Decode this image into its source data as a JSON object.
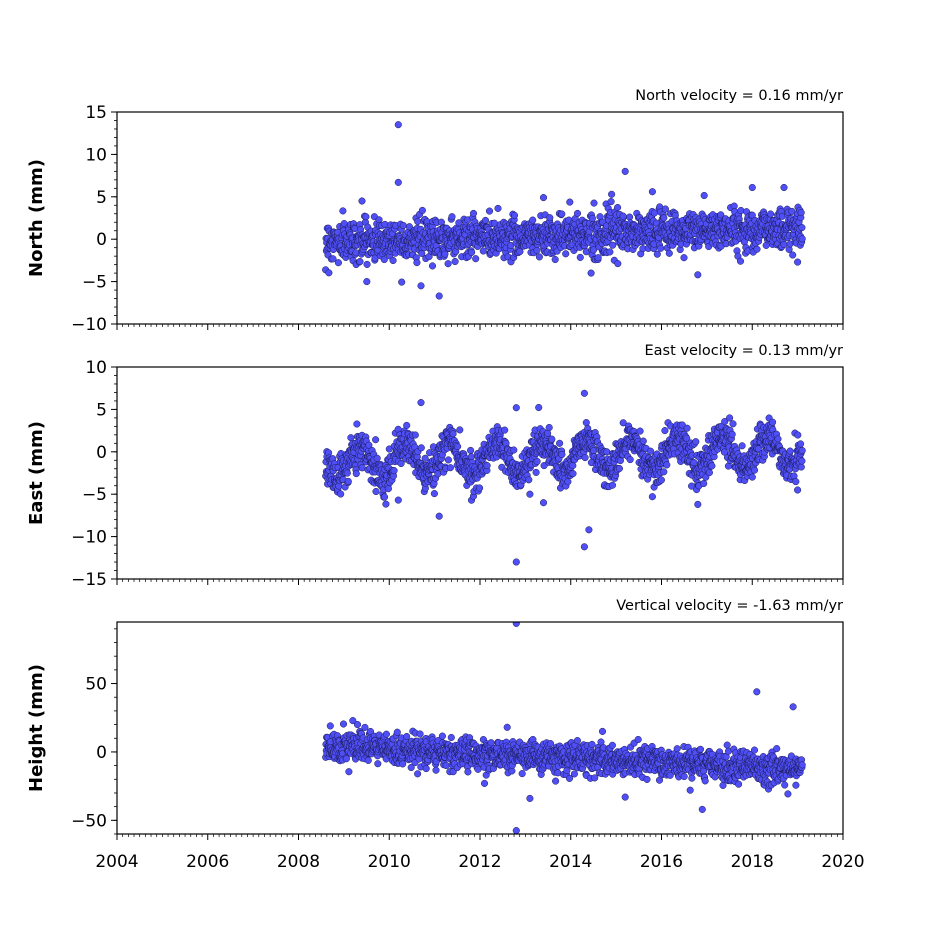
{
  "figure": {
    "xlim": [
      2004,
      2020
    ],
    "x_ticks": [
      2004,
      2006,
      2008,
      2010,
      2012,
      2014,
      2016,
      2018,
      2020
    ],
    "x_tick_labels": [
      "2004",
      "2006",
      "2008",
      "2010",
      "2012",
      "2014",
      "2016",
      "2018",
      "2020"
    ],
    "marker_color": "#4f4ff5",
    "marker_edge_color": "#1a1a55"
  },
  "chart_data": [
    {
      "type": "scatter",
      "title": "North velocity = 0.16 mm/yr",
      "ylabel": "North (mm)",
      "ylim": [
        -10,
        15
      ],
      "y_ticks": [
        -10,
        -5,
        0,
        5,
        10,
        15
      ],
      "y_tick_labels": [
        "−10",
        "−5",
        "0",
        "5",
        "10",
        "15"
      ],
      "data_span": [
        2008.6,
        2019.1
      ],
      "velocity": 0.16,
      "center": -0.3,
      "noise": 1.2,
      "outliers": [
        {
          "x": 2010.2,
          "y": 13.5
        },
        {
          "x": 2010.2,
          "y": 6.7
        },
        {
          "x": 2015.2,
          "y": 8.0
        },
        {
          "x": 2010.7,
          "y": -5.5
        },
        {
          "x": 2011.1,
          "y": -6.7
        },
        {
          "x": 2016.8,
          "y": -4.2
        },
        {
          "x": 2018.0,
          "y": 6.1
        },
        {
          "x": 2018.7,
          "y": 6.1
        },
        {
          "x": 2014.9,
          "y": 5.3
        },
        {
          "x": 2015.8,
          "y": 5.6
        },
        {
          "x": 2009.4,
          "y": 4.5
        },
        {
          "x": 2013.4,
          "y": 4.9
        },
        {
          "x": 2019.0,
          "y": -2.7
        }
      ]
    },
    {
      "type": "scatter",
      "title": "East velocity = 0.13 mm/yr",
      "ylabel": "East (mm)",
      "ylim": [
        -15,
        10
      ],
      "y_ticks": [
        -15,
        -10,
        -5,
        0,
        5,
        10
      ],
      "y_tick_labels": [
        "−15",
        "−10",
        "−5",
        "0",
        "5",
        "10"
      ],
      "data_span": [
        2008.6,
        2019.1
      ],
      "velocity": 0.13,
      "center": -1.2,
      "noise": 1.1,
      "seasonal_amplitude": 1.8,
      "outliers": [
        {
          "x": 2010.7,
          "y": 5.8
        },
        {
          "x": 2012.8,
          "y": 5.2
        },
        {
          "x": 2014.3,
          "y": 6.9
        },
        {
          "x": 2012.8,
          "y": -13.0
        },
        {
          "x": 2014.3,
          "y": -11.2
        },
        {
          "x": 2014.4,
          "y": -9.2
        },
        {
          "x": 2011.1,
          "y": -7.6
        },
        {
          "x": 2013.4,
          "y": -6.0
        },
        {
          "x": 2016.8,
          "y": -6.2
        },
        {
          "x": 2010.2,
          "y": -5.7
        },
        {
          "x": 2013.1,
          "y": -5.0
        },
        {
          "x": 2015.8,
          "y": -5.3
        },
        {
          "x": 2019.0,
          "y": -4.5
        },
        {
          "x": 2017.5,
          "y": 4.0
        }
      ]
    },
    {
      "type": "scatter",
      "title": "Vertical velocity = -1.63 mm/yr",
      "ylabel": "Height (mm)",
      "ylim": [
        -60,
        95
      ],
      "y_ticks": [
        -50,
        0,
        50
      ],
      "y_tick_labels": [
        "−50",
        "0",
        "50"
      ],
      "data_span": [
        2008.6,
        2019.1
      ],
      "velocity": -1.63,
      "center": 4.0,
      "noise": 5.5,
      "outliers": [
        {
          "x": 2012.8,
          "y": 94.0
        },
        {
          "x": 2012.8,
          "y": -57.5
        },
        {
          "x": 2018.1,
          "y": 44.0
        },
        {
          "x": 2018.9,
          "y": 33.0
        },
        {
          "x": 2016.9,
          "y": -42.0
        },
        {
          "x": 2013.1,
          "y": -34.0
        },
        {
          "x": 2015.2,
          "y": -33.0
        },
        {
          "x": 2009.3,
          "y": 20.0
        },
        {
          "x": 2008.7,
          "y": 19.0
        },
        {
          "x": 2012.6,
          "y": 18.0
        },
        {
          "x": 2014.7,
          "y": 15.0
        },
        {
          "x": 2012.1,
          "y": -23.0
        }
      ]
    }
  ]
}
